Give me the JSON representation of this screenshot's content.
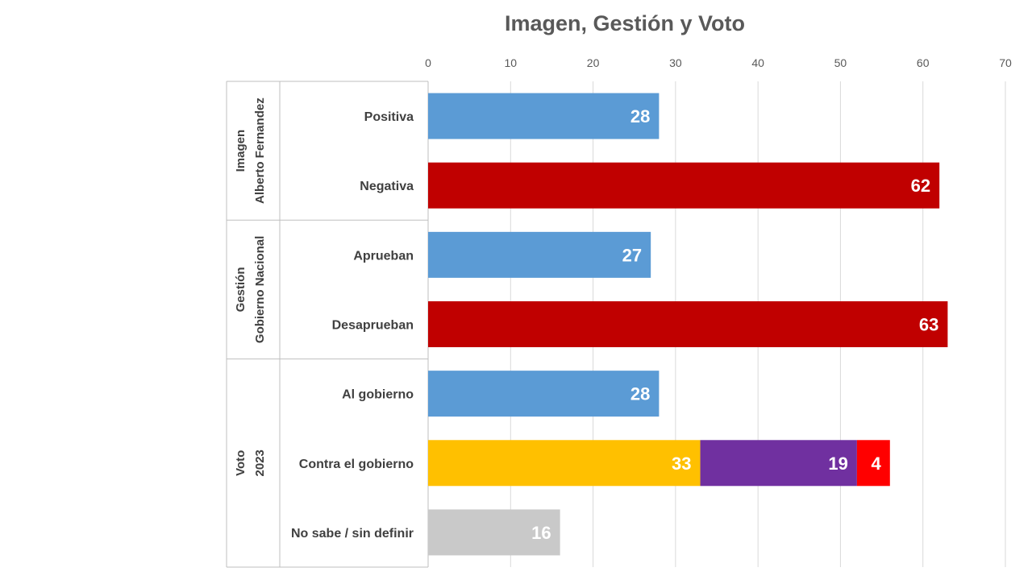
{
  "chart_data": {
    "type": "bar",
    "orientation": "horizontal",
    "stacked": true,
    "title": "Imagen, Gestión y Voto",
    "xlim": [
      0,
      70
    ],
    "xticks": [
      0,
      10,
      20,
      30,
      40,
      50,
      60,
      70
    ],
    "grid": true,
    "groups": [
      {
        "label_lines": [
          "Imagen",
          "Alberto Fernandez"
        ],
        "rows": [
          0,
          1
        ]
      },
      {
        "label_lines": [
          "Gestión",
          "Gobierno Nacional"
        ],
        "rows": [
          2,
          3
        ]
      },
      {
        "label_lines": [
          "Voto",
          "2023"
        ],
        "rows": [
          4,
          5,
          6
        ]
      }
    ],
    "categories": [
      "Positiva",
      "Negativa",
      "Aprueban",
      "Desaprueban",
      "Al gobierno",
      "Contra el gobierno",
      "No sabe / sin definir"
    ],
    "rows": [
      {
        "segments": [
          {
            "value": 28,
            "color": "#5b9bd5"
          }
        ]
      },
      {
        "segments": [
          {
            "value": 62,
            "color": "#c00000"
          }
        ]
      },
      {
        "segments": [
          {
            "value": 27,
            "color": "#5b9bd5"
          }
        ]
      },
      {
        "segments": [
          {
            "value": 63,
            "color": "#c00000"
          }
        ]
      },
      {
        "segments": [
          {
            "value": 28,
            "color": "#5b9bd5"
          }
        ]
      },
      {
        "segments": [
          {
            "value": 33,
            "color": "#ffc000"
          },
          {
            "value": 19,
            "color": "#7030a0"
          },
          {
            "value": 4,
            "color": "#ff0000"
          }
        ]
      },
      {
        "segments": [
          {
            "value": 16,
            "color": "#c9c9c9"
          }
        ]
      }
    ]
  }
}
